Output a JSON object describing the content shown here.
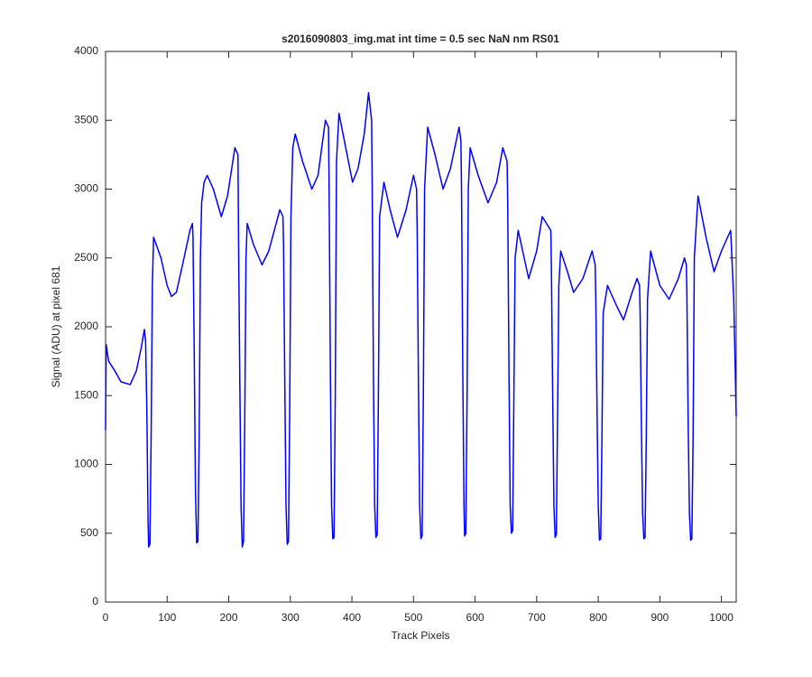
{
  "chart_data": {
    "type": "line",
    "title": "s2016090803_img.mat int time = 0.5 sec  NaN nm RS01",
    "x_label": "Track Pixels",
    "y_label": "Signal (ADU) at pixel 681",
    "xlim": [
      0,
      1024
    ],
    "ylim": [
      0,
      4000
    ],
    "xticks": [
      0,
      100,
      200,
      300,
      400,
      500,
      600,
      700,
      800,
      900,
      1000
    ],
    "yticks": [
      0,
      500,
      1000,
      1500,
      2000,
      2500,
      3000,
      3500,
      4000
    ],
    "grid": false,
    "x": [
      0,
      1,
      5,
      15,
      25,
      40,
      50,
      58,
      63,
      65,
      67,
      69,
      70,
      72,
      74,
      76,
      78,
      82,
      90,
      100,
      107,
      115,
      125,
      137,
      141,
      142,
      144,
      146,
      148,
      150,
      152,
      154,
      156,
      160,
      165,
      175,
      188,
      198,
      210,
      215,
      216,
      218,
      220,
      222,
      224,
      226,
      228,
      230,
      240,
      254,
      265,
      283,
      288,
      289,
      291,
      293,
      295,
      297,
      299,
      301,
      304,
      308,
      320,
      335,
      345,
      357,
      362,
      363,
      365,
      367,
      369,
      371,
      373,
      375,
      379,
      390,
      401,
      410,
      420,
      427,
      432,
      433,
      435,
      437,
      439,
      441,
      443,
      445,
      452,
      462,
      474,
      488,
      500,
      505,
      506,
      508,
      510,
      512,
      514,
      516,
      518,
      523,
      535,
      548,
      560,
      574,
      577,
      578,
      580,
      582,
      583,
      585,
      587,
      589,
      592,
      605,
      621,
      635,
      645,
      652,
      653,
      655,
      657,
      659,
      661,
      663,
      665,
      670,
      687,
      700,
      709,
      723,
      724,
      726,
      728,
      730,
      732,
      734,
      736,
      739,
      750,
      760,
      775,
      790,
      795,
      796,
      798,
      800,
      802,
      804,
      806,
      808,
      815,
      830,
      841,
      855,
      863,
      867,
      868,
      870,
      872,
      874,
      876,
      878,
      880,
      885,
      900,
      915,
      930,
      940,
      943,
      944,
      946,
      948,
      950,
      952,
      954,
      956,
      962,
      975,
      988,
      1000,
      1015,
      1020,
      1024
    ],
    "series": [
      {
        "name": "Signal",
        "color": "#0000ff",
        "values": [
          1250,
          1870,
          1750,
          1680,
          1600,
          1580,
          1680,
          1850,
          1980,
          1900,
          1400,
          600,
          400,
          420,
          1200,
          2300,
          2650,
          2600,
          2500,
          2300,
          2220,
          2250,
          2450,
          2700,
          2750,
          2650,
          1800,
          800,
          430,
          440,
          1200,
          2500,
          2900,
          3050,
          3100,
          3000,
          2800,
          2950,
          3300,
          3250,
          2600,
          1600,
          700,
          400,
          440,
          1300,
          2500,
          2750,
          2600,
          2450,
          2550,
          2850,
          2800,
          2600,
          1600,
          700,
          420,
          440,
          1400,
          2800,
          3300,
          3400,
          3200,
          3000,
          3100,
          3500,
          3450,
          3000,
          1700,
          700,
          460,
          470,
          1500,
          3200,
          3550,
          3300,
          3050,
          3150,
          3400,
          3700,
          3500,
          3000,
          1600,
          700,
          470,
          490,
          1500,
          2800,
          3050,
          2850,
          2650,
          2850,
          3100,
          3000,
          2700,
          1600,
          700,
          460,
          480,
          1500,
          3000,
          3450,
          3250,
          3000,
          3150,
          3450,
          3350,
          3000,
          1700,
          700,
          480,
          500,
          1500,
          3000,
          3300,
          3100,
          2900,
          3050,
          3300,
          3200,
          2900,
          1700,
          700,
          500,
          520,
          1500,
          2500,
          2700,
          2350,
          2550,
          2800,
          2700,
          2400,
          1500,
          700,
          470,
          490,
          1400,
          2300,
          2550,
          2400,
          2250,
          2350,
          2550,
          2450,
          2200,
          1400,
          700,
          450,
          460,
          1200,
          2100,
          2300,
          2150,
          2050,
          2250,
          2350,
          2300,
          2100,
          1300,
          650,
          460,
          470,
          1200,
          2200,
          2550,
          2300,
          2200,
          2350,
          2500,
          2450,
          2200,
          1300,
          650,
          450,
          460,
          1200,
          2500,
          2950,
          2650,
          2400,
          2550,
          2700,
          2200,
          1350
        ]
      }
    ]
  }
}
